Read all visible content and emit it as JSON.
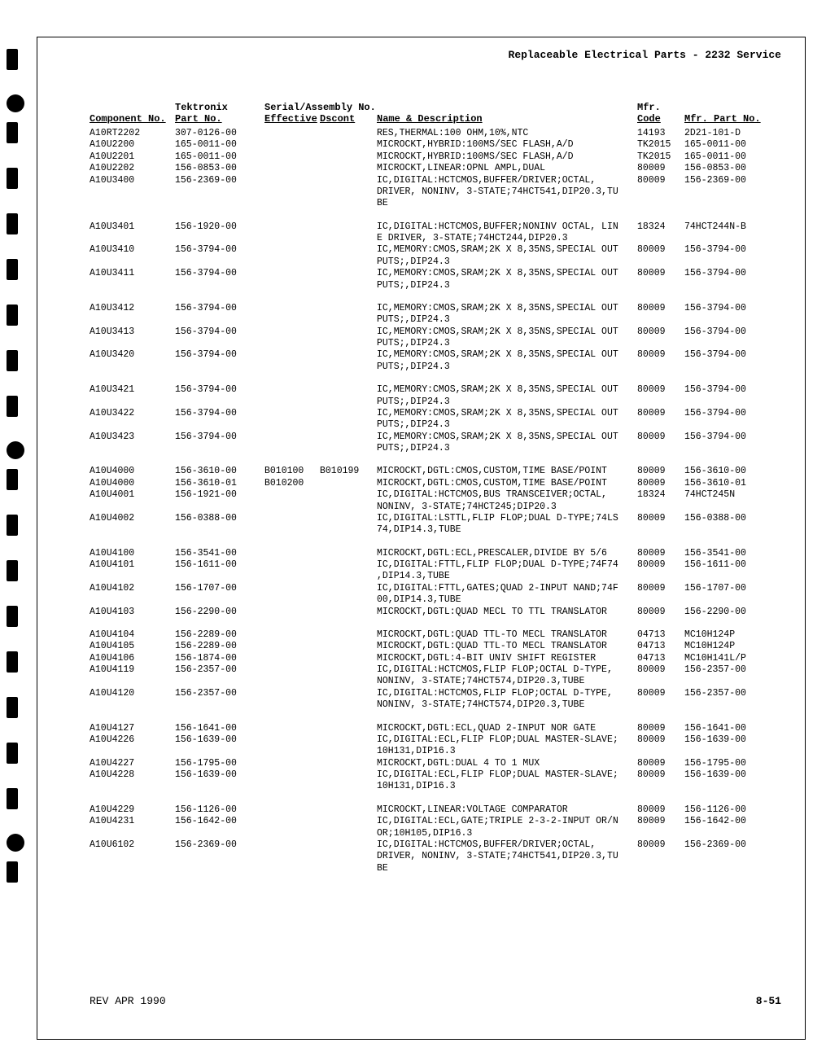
{
  "document_title": "Replaceable Electrical Parts - 2232 Service",
  "columns": {
    "component": "Component No.",
    "tektronix": "Tektronix",
    "part": "Part No.",
    "serial": "Serial/Assembly No.",
    "effective": "Effective",
    "dscont": "Dscont",
    "name": "Name & Description",
    "mfr": "Mfr.",
    "code": "Code",
    "mfr_part": "Mfr. Part No."
  },
  "footer": {
    "rev": "REV APR 1990",
    "page": "8-51"
  },
  "rows": [
    {
      "comp": "A10RT2202",
      "part": "307-0126-00",
      "eff": "",
      "dsc": "",
      "name": "RES,THERMAL:100 OHM,10%,NTC",
      "mfr": "14193",
      "mfrpart": "2D21-101-D"
    },
    {
      "comp": "A10U2200",
      "part": "165-0011-00",
      "eff": "",
      "dsc": "",
      "name": "MICROCKT,HYBRID:100MS/SEC FLASH,A/D",
      "mfr": "TK2015",
      "mfrpart": "165-0011-00"
    },
    {
      "comp": "A10U2201",
      "part": "165-0011-00",
      "eff": "",
      "dsc": "",
      "name": "MICROCKT,HYBRID:100MS/SEC FLASH,A/D",
      "mfr": "TK2015",
      "mfrpart": "165-0011-00"
    },
    {
      "comp": "A10U2202",
      "part": "156-0853-00",
      "eff": "",
      "dsc": "",
      "name": "MICROCKT,LINEAR:OPNL AMPL,DUAL",
      "mfr": "80009",
      "mfrpart": "156-0853-00"
    },
    {
      "comp": "A10U3400",
      "part": "156-2369-00",
      "eff": "",
      "dsc": "",
      "name": "IC,DIGITAL:HCTCMOS,BUFFER/DRIVER;OCTAL,",
      "mfr": "80009",
      "mfrpart": "156-2369-00"
    },
    {
      "comp": "",
      "part": "",
      "eff": "",
      "dsc": "",
      "name": "DRIVER, NONINV, 3-STATE;74HCT541,DIP20.3,TU",
      "mfr": "",
      "mfrpart": ""
    },
    {
      "comp": "",
      "part": "",
      "eff": "",
      "dsc": "",
      "name": "BE",
      "mfr": "",
      "mfrpart": ""
    },
    {
      "spacer": true
    },
    {
      "comp": "A10U3401",
      "part": "156-1920-00",
      "eff": "",
      "dsc": "",
      "name": "IC,DIGITAL:HCTCMOS,BUFFER;NONINV OCTAL, LIN",
      "mfr": "18324",
      "mfrpart": "74HCT244N-B"
    },
    {
      "comp": "",
      "part": "",
      "eff": "",
      "dsc": "",
      "name": "E DRIVER, 3-STATE;74HCT244,DIP20.3",
      "mfr": "",
      "mfrpart": ""
    },
    {
      "comp": "A10U3410",
      "part": "156-3794-00",
      "eff": "",
      "dsc": "",
      "name": "IC,MEMORY:CMOS,SRAM;2K X 8,35NS,SPECIAL OUT",
      "mfr": "80009",
      "mfrpart": "156-3794-00"
    },
    {
      "comp": "",
      "part": "",
      "eff": "",
      "dsc": "",
      "name": "PUTS;,DIP24.3",
      "mfr": "",
      "mfrpart": ""
    },
    {
      "comp": "A10U3411",
      "part": "156-3794-00",
      "eff": "",
      "dsc": "",
      "name": "IC,MEMORY:CMOS,SRAM;2K X 8,35NS,SPECIAL OUT",
      "mfr": "80009",
      "mfrpart": "156-3794-00"
    },
    {
      "comp": "",
      "part": "",
      "eff": "",
      "dsc": "",
      "name": "PUTS;,DIP24.3",
      "mfr": "",
      "mfrpart": ""
    },
    {
      "spacer": true
    },
    {
      "comp": "A10U3412",
      "part": "156-3794-00",
      "eff": "",
      "dsc": "",
      "name": "IC,MEMORY:CMOS,SRAM;2K X 8,35NS,SPECIAL OUT",
      "mfr": "80009",
      "mfrpart": "156-3794-00"
    },
    {
      "comp": "",
      "part": "",
      "eff": "",
      "dsc": "",
      "name": "PUTS;,DIP24.3",
      "mfr": "",
      "mfrpart": ""
    },
    {
      "comp": "A10U3413",
      "part": "156-3794-00",
      "eff": "",
      "dsc": "",
      "name": "IC,MEMORY:CMOS,SRAM;2K X 8,35NS,SPECIAL OUT",
      "mfr": "80009",
      "mfrpart": "156-3794-00"
    },
    {
      "comp": "",
      "part": "",
      "eff": "",
      "dsc": "",
      "name": "PUTS;,DIP24.3",
      "mfr": "",
      "mfrpart": ""
    },
    {
      "comp": "A10U3420",
      "part": "156-3794-00",
      "eff": "",
      "dsc": "",
      "name": "IC,MEMORY:CMOS,SRAM;2K X 8,35NS,SPECIAL OUT",
      "mfr": "80009",
      "mfrpart": "156-3794-00"
    },
    {
      "comp": "",
      "part": "",
      "eff": "",
      "dsc": "",
      "name": "PUTS;,DIP24.3",
      "mfr": "",
      "mfrpart": ""
    },
    {
      "spacer": true
    },
    {
      "comp": "A10U3421",
      "part": "156-3794-00",
      "eff": "",
      "dsc": "",
      "name": "IC,MEMORY:CMOS,SRAM;2K X 8,35NS,SPECIAL OUT",
      "mfr": "80009",
      "mfrpart": "156-3794-00"
    },
    {
      "comp": "",
      "part": "",
      "eff": "",
      "dsc": "",
      "name": "PUTS;,DIP24.3",
      "mfr": "",
      "mfrpart": ""
    },
    {
      "comp": "A10U3422",
      "part": "156-3794-00",
      "eff": "",
      "dsc": "",
      "name": "IC,MEMORY:CMOS,SRAM;2K X 8,35NS,SPECIAL OUT",
      "mfr": "80009",
      "mfrpart": "156-3794-00"
    },
    {
      "comp": "",
      "part": "",
      "eff": "",
      "dsc": "",
      "name": "PUTS;,DIP24.3",
      "mfr": "",
      "mfrpart": ""
    },
    {
      "comp": "A10U3423",
      "part": "156-3794-00",
      "eff": "",
      "dsc": "",
      "name": "IC,MEMORY:CMOS,SRAM;2K X 8,35NS,SPECIAL OUT",
      "mfr": "80009",
      "mfrpart": "156-3794-00"
    },
    {
      "comp": "",
      "part": "",
      "eff": "",
      "dsc": "",
      "name": "PUTS;,DIP24.3",
      "mfr": "",
      "mfrpart": ""
    },
    {
      "spacer": true
    },
    {
      "comp": "A10U4000",
      "part": "156-3610-00",
      "eff": "B010100",
      "dsc": "B010199",
      "name": "MICROCKT,DGTL:CMOS,CUSTOM,TIME BASE/POINT",
      "mfr": "80009",
      "mfrpart": "156-3610-00"
    },
    {
      "comp": "A10U4000",
      "part": "156-3610-01",
      "eff": "B010200",
      "dsc": "",
      "name": "MICROCKT,DGTL:CMOS,CUSTOM,TIME BASE/POINT",
      "mfr": "80009",
      "mfrpart": "156-3610-01"
    },
    {
      "comp": "A10U4001",
      "part": "156-1921-00",
      "eff": "",
      "dsc": "",
      "name": "IC,DIGITAL:HCTCMOS,BUS TRANSCEIVER;OCTAL,",
      "mfr": "18324",
      "mfrpart": "74HCT245N"
    },
    {
      "comp": "",
      "part": "",
      "eff": "",
      "dsc": "",
      "name": "NONINV, 3-STATE;74HCT245;DIP20.3",
      "mfr": "",
      "mfrpart": ""
    },
    {
      "comp": "A10U4002",
      "part": "156-0388-00",
      "eff": "",
      "dsc": "",
      "name": "IC,DIGITAL:LSTTL,FLIP FLOP;DUAL D-TYPE;74LS",
      "mfr": "80009",
      "mfrpart": "156-0388-00"
    },
    {
      "comp": "",
      "part": "",
      "eff": "",
      "dsc": "",
      "name": "74,DIP14.3,TUBE",
      "mfr": "",
      "mfrpart": ""
    },
    {
      "spacer": true
    },
    {
      "comp": "A10U4100",
      "part": "156-3541-00",
      "eff": "",
      "dsc": "",
      "name": "MICROCKT,DGTL:ECL,PRESCALER,DIVIDE BY 5/6",
      "mfr": "80009",
      "mfrpart": "156-3541-00"
    },
    {
      "comp": "A10U4101",
      "part": "156-1611-00",
      "eff": "",
      "dsc": "",
      "name": "IC,DIGITAL:FTTL,FLIP FLOP;DUAL D-TYPE;74F74",
      "mfr": "80009",
      "mfrpart": "156-1611-00"
    },
    {
      "comp": "",
      "part": "",
      "eff": "",
      "dsc": "",
      "name": ",DIP14.3,TUBE",
      "mfr": "",
      "mfrpart": ""
    },
    {
      "comp": "A10U4102",
      "part": "156-1707-00",
      "eff": "",
      "dsc": "",
      "name": "IC,DIGITAL:FTTL,GATES;QUAD 2-INPUT NAND;74F",
      "mfr": "80009",
      "mfrpart": "156-1707-00"
    },
    {
      "comp": "",
      "part": "",
      "eff": "",
      "dsc": "",
      "name": "00,DIP14.3,TUBE",
      "mfr": "",
      "mfrpart": ""
    },
    {
      "comp": "A10U4103",
      "part": "156-2290-00",
      "eff": "",
      "dsc": "",
      "name": "MICROCKT,DGTL:QUAD MECL TO TTL TRANSLATOR",
      "mfr": "80009",
      "mfrpart": "156-2290-00"
    },
    {
      "spacer": true
    },
    {
      "comp": "A10U4104",
      "part": "156-2289-00",
      "eff": "",
      "dsc": "",
      "name": "MICROCKT,DGTL:QUAD TTL-TO MECL TRANSLATOR",
      "mfr": "04713",
      "mfrpart": "MC10H124P"
    },
    {
      "comp": "A10U4105",
      "part": "156-2289-00",
      "eff": "",
      "dsc": "",
      "name": "MICROCKT,DGTL:QUAD TTL-TO MECL TRANSLATOR",
      "mfr": "04713",
      "mfrpart": "MC10H124P"
    },
    {
      "comp": "A10U4106",
      "part": "156-1874-00",
      "eff": "",
      "dsc": "",
      "name": "MICROCKT,DGTL:4-BIT UNIV SHIFT REGISTER",
      "mfr": "04713",
      "mfrpart": "MC10H141L/P"
    },
    {
      "comp": "A10U4119",
      "part": "156-2357-00",
      "eff": "",
      "dsc": "",
      "name": "IC,DIGITAL:HCTCMOS,FLIP FLOP;OCTAL D-TYPE,",
      "mfr": "80009",
      "mfrpart": "156-2357-00"
    },
    {
      "comp": "",
      "part": "",
      "eff": "",
      "dsc": "",
      "name": "NONINV, 3-STATE;74HCT574,DIP20.3,TUBE",
      "mfr": "",
      "mfrpart": ""
    },
    {
      "comp": "A10U4120",
      "part": "156-2357-00",
      "eff": "",
      "dsc": "",
      "name": "IC,DIGITAL:HCTCMOS,FLIP FLOP;OCTAL D-TYPE,",
      "mfr": "80009",
      "mfrpart": "156-2357-00"
    },
    {
      "comp": "",
      "part": "",
      "eff": "",
      "dsc": "",
      "name": "NONINV, 3-STATE;74HCT574,DIP20.3,TUBE",
      "mfr": "",
      "mfrpart": ""
    },
    {
      "spacer": true
    },
    {
      "comp": "A10U4127",
      "part": "156-1641-00",
      "eff": "",
      "dsc": "",
      "name": "MICROCKT,DGTL:ECL,QUAD 2-INPUT NOR GATE",
      "mfr": "80009",
      "mfrpart": "156-1641-00"
    },
    {
      "comp": "A10U4226",
      "part": "156-1639-00",
      "eff": "",
      "dsc": "",
      "name": "IC,DIGITAL:ECL,FLIP FLOP;DUAL MASTER-SLAVE;",
      "mfr": "80009",
      "mfrpart": "156-1639-00"
    },
    {
      "comp": "",
      "part": "",
      "eff": "",
      "dsc": "",
      "name": "10H131,DIP16.3",
      "mfr": "",
      "mfrpart": ""
    },
    {
      "comp": "A10U4227",
      "part": "156-1795-00",
      "eff": "",
      "dsc": "",
      "name": "MICROCKT,DGTL:DUAL 4 TO 1 MUX",
      "mfr": "80009",
      "mfrpart": "156-1795-00"
    },
    {
      "comp": "A10U4228",
      "part": "156-1639-00",
      "eff": "",
      "dsc": "",
      "name": "IC,DIGITAL:ECL,FLIP FLOP;DUAL MASTER-SLAVE;",
      "mfr": "80009",
      "mfrpart": "156-1639-00"
    },
    {
      "comp": "",
      "part": "",
      "eff": "",
      "dsc": "",
      "name": "10H131,DIP16.3",
      "mfr": "",
      "mfrpart": ""
    },
    {
      "spacer": true
    },
    {
      "comp": "A10U4229",
      "part": "156-1126-00",
      "eff": "",
      "dsc": "",
      "name": "MICROCKT,LINEAR:VOLTAGE COMPARATOR",
      "mfr": "80009",
      "mfrpart": "156-1126-00"
    },
    {
      "comp": "A10U4231",
      "part": "156-1642-00",
      "eff": "",
      "dsc": "",
      "name": "IC,DIGITAL:ECL,GATE;TRIPLE 2-3-2-INPUT OR/N",
      "mfr": "80009",
      "mfrpart": "156-1642-00"
    },
    {
      "comp": "",
      "part": "",
      "eff": "",
      "dsc": "",
      "name": "OR;10H105,DIP16.3",
      "mfr": "",
      "mfrpart": ""
    },
    {
      "comp": "A10U6102",
      "part": "156-2369-00",
      "eff": "",
      "dsc": "",
      "name": "IC,DIGITAL:HCTCMOS,BUFFER/DRIVER;OCTAL,",
      "mfr": "80009",
      "mfrpart": "156-2369-00"
    },
    {
      "comp": "",
      "part": "",
      "eff": "",
      "dsc": "",
      "name": "DRIVER, NONINV, 3-STATE;74HCT541,DIP20.3,TU",
      "mfr": "",
      "mfrpart": ""
    },
    {
      "comp": "",
      "part": "",
      "eff": "",
      "dsc": "",
      "name": "BE",
      "mfr": "",
      "mfrpart": ""
    }
  ]
}
